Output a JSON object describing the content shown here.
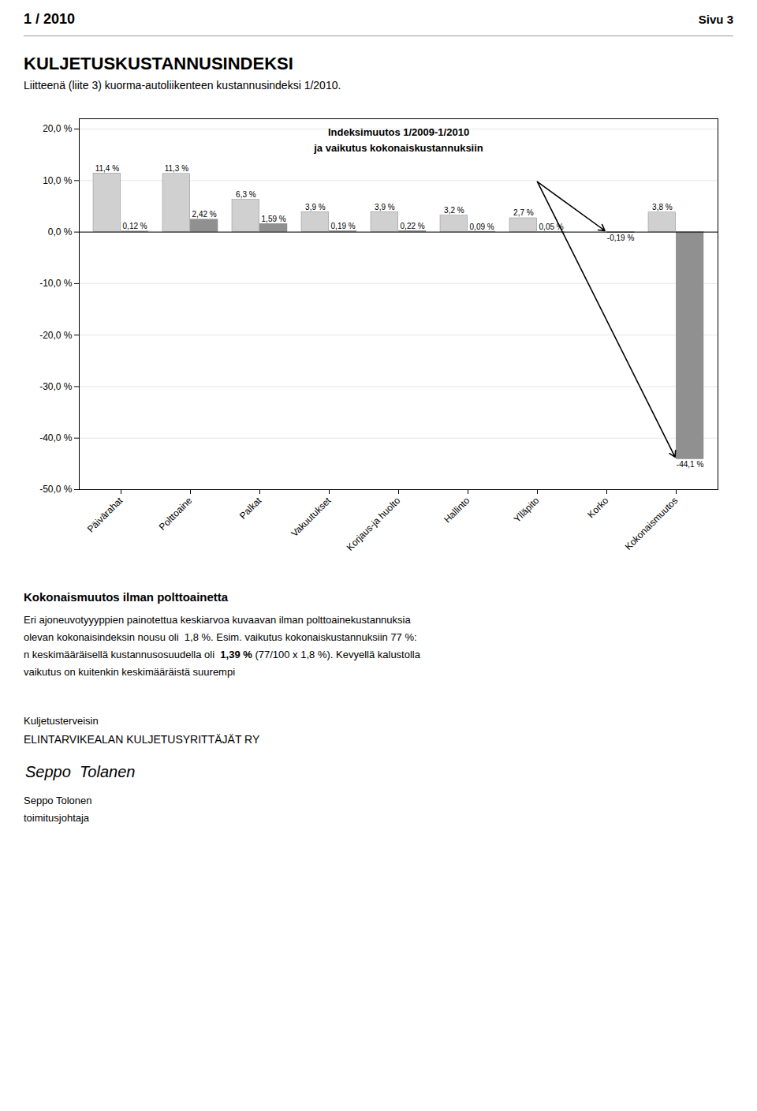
{
  "header": "1 / 2010",
  "header_right": "Sivu 3",
  "chart_data": {
    "type": "bar",
    "title": "KULJETUSKUSTANNUSINDEKSI",
    "subtitle": "Liitteenä (liite 3) kuorma-autoliikenteen kustannusindeksi 1/2010.",
    "annotations": [
      "Indeksimuutos 1/2009-1/2010",
      "ja vaikutus kokonaiskustannuksiin"
    ],
    "categories": [
      "Päivärahat",
      "Polttoaine",
      "Palkat",
      "Vakuutukset",
      "Korjaus-ja huolto",
      "Hallinto",
      "Ylläpito",
      "Korko",
      "Kokonaismuutos"
    ],
    "series": [
      {
        "color": "#d0d0d0",
        "values": [
          11.4,
          11.3,
          6.3,
          3.9,
          3.9,
          3.2,
          2.7,
          0.0,
          3.8
        ],
        "value_labels": [
          "11,4 %",
          "11,3 %",
          "6,3 %",
          "3,9 %",
          "3,9 %",
          "3,2 %",
          "2,7 %",
          null,
          "3,8 %"
        ]
      },
      {
        "color": "#909090",
        "values": [
          0.12,
          2.42,
          1.59,
          0.19,
          0.22,
          0.09,
          0.05,
          -0.19,
          -44.1
        ],
        "value_labels": [
          "0,12 %",
          "2,42 %",
          "1,59 %",
          "0,19 %",
          "0,22 %",
          "0,09 %",
          "0,05 %",
          "-0,19 %",
          "-44,1 %"
        ]
      }
    ],
    "ylim": [
      -50,
      22
    ],
    "yticks": [
      {
        "value": -50,
        "label": "-50,0 %"
      },
      {
        "value": -40,
        "label": "-40,0 %"
      },
      {
        "value": -30,
        "label": "-30,0 %"
      },
      {
        "value": -20,
        "label": "-20,0 %"
      },
      {
        "value": -10,
        "label": "-10,0 %"
      },
      {
        "value": 0,
        "label": "0,0 %"
      },
      {
        "value": 10,
        "label": "10,0 %"
      },
      {
        "value": 20,
        "label": "20,0 %"
      }
    ],
    "grid": true,
    "data_labels": true
  },
  "body_title": "Kokonaismuutos ilman polttoainetta",
  "body": [
    "Eri ajoneuvotyyyppien painotettua keskiarvoa kuvaavan ilman polttoainekustannuksia",
    "olevan kokonaisindeksin nousu oli  1,8 %. Esim. vaikutus kokonaiskustannuksiin 77 %:",
    [
      "n keskimääräisellä kustannusosuudella oli  ",
      "1,39 %",
      " (77/100 x 1,8 %). Kevyellä kalustolla"
    ],
    "vaikutus on kuitenkin keskimääräistä suurempi"
  ],
  "closing": "Kuljetusterveisin",
  "organisation": "ELINTARVIKEALAN KULJETUSYRITTÄJÄT RY",
  "signature": "Seppo  Tolanen",
  "signer": "Seppo Tolonen",
  "signer_title": "toimitusjohtaja"
}
